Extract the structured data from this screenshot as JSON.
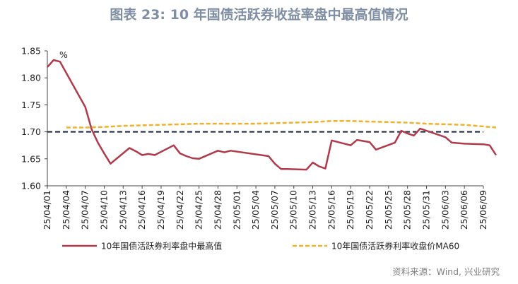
{
  "title": "图表 23: 10 年国债活跃券收益率盘中最高值情况",
  "source": "资料来源：Wind, 兴业研究",
  "chart_data": {
    "type": "line",
    "unit_label": "%",
    "ylim": [
      1.6,
      1.85
    ],
    "yticks": [
      "1.85",
      "1.80",
      "1.75",
      "1.70",
      "1.65",
      "1.60"
    ],
    "xtick_labels": [
      "25/04/01",
      "25/04/04",
      "25/04/07",
      "25/04/10",
      "25/04/13",
      "25/04/16",
      "25/04/19",
      "25/04/22",
      "25/04/25",
      "25/04/28",
      "25/05/01",
      "25/05/04",
      "25/05/07",
      "25/05/10",
      "25/05/13",
      "25/05/16",
      "25/05/19",
      "25/05/22",
      "25/05/25",
      "25/05/28",
      "25/05/31",
      "25/06/03",
      "25/06/06",
      "25/06/09"
    ],
    "reference_line": 1.7,
    "series": [
      {
        "name": "10年国债活跃券利率盘中最高值",
        "color": "#b03a4a",
        "style": "solid",
        "points": [
          [
            "25/04/01",
            1.82
          ],
          [
            "25/04/02",
            1.833
          ],
          [
            "25/04/03",
            1.83
          ],
          [
            "25/04/07",
            1.746
          ],
          [
            "25/04/08",
            1.705
          ],
          [
            "25/04/09",
            1.68
          ],
          [
            "25/04/10",
            1.66
          ],
          [
            "25/04/11",
            1.641
          ],
          [
            "25/04/14",
            1.67
          ],
          [
            "25/04/15",
            1.664
          ],
          [
            "25/04/16",
            1.657
          ],
          [
            "25/04/17",
            1.659
          ],
          [
            "25/04/18",
            1.657
          ],
          [
            "25/04/21",
            1.675
          ],
          [
            "25/04/22",
            1.66
          ],
          [
            "25/04/23",
            1.655
          ],
          [
            "25/04/24",
            1.651
          ],
          [
            "25/04/25",
            1.65
          ],
          [
            "25/04/28",
            1.665
          ],
          [
            "25/04/29",
            1.662
          ],
          [
            "25/04/30",
            1.665
          ],
          [
            "25/05/06",
            1.655
          ],
          [
            "25/05/07",
            1.641
          ],
          [
            "25/05/08",
            1.631
          ],
          [
            "25/05/09",
            1.631
          ],
          [
            "25/05/12",
            1.63
          ],
          [
            "25/05/13",
            1.643
          ],
          [
            "25/05/14",
            1.636
          ],
          [
            "25/05/15",
            1.632
          ],
          [
            "25/05/16",
            1.684
          ],
          [
            "25/05/19",
            1.675
          ],
          [
            "25/05/20",
            1.685
          ],
          [
            "25/05/21",
            1.683
          ],
          [
            "25/05/22",
            1.681
          ],
          [
            "25/05/23",
            1.667
          ],
          [
            "25/05/26",
            1.68
          ],
          [
            "25/05/27",
            1.702
          ],
          [
            "25/05/28",
            1.697
          ],
          [
            "25/05/29",
            1.693
          ],
          [
            "25/05/30",
            1.706
          ],
          [
            "25/06/03",
            1.69
          ],
          [
            "25/06/04",
            1.68
          ],
          [
            "25/06/05",
            1.679
          ],
          [
            "25/06/06",
            1.678
          ],
          [
            "25/06/09",
            1.677
          ],
          [
            "25/06/10",
            1.675
          ],
          [
            "25/06/11",
            1.657
          ]
        ]
      },
      {
        "name": "10年国债活跃券利率收盘价MA60",
        "color": "#f0b12b",
        "style": "dashed",
        "points": [
          [
            "25/04/04",
            1.708
          ],
          [
            "25/04/07",
            1.708
          ],
          [
            "25/04/10",
            1.709
          ],
          [
            "25/04/13",
            1.711
          ],
          [
            "25/04/16",
            1.712
          ],
          [
            "25/04/19",
            1.713
          ],
          [
            "25/04/22",
            1.714
          ],
          [
            "25/04/25",
            1.715
          ],
          [
            "25/04/28",
            1.715
          ],
          [
            "25/05/01",
            1.715
          ],
          [
            "25/05/04",
            1.715
          ],
          [
            "25/05/07",
            1.716
          ],
          [
            "25/05/10",
            1.717
          ],
          [
            "25/05/13",
            1.718
          ],
          [
            "25/05/16",
            1.72
          ],
          [
            "25/05/19",
            1.72
          ],
          [
            "25/05/22",
            1.719
          ],
          [
            "25/05/25",
            1.718
          ],
          [
            "25/05/28",
            1.717
          ],
          [
            "25/05/31",
            1.715
          ],
          [
            "25/06/03",
            1.714
          ],
          [
            "25/06/06",
            1.713
          ],
          [
            "25/06/09",
            1.71
          ],
          [
            "25/06/11",
            1.708
          ]
        ]
      }
    ],
    "legend": [
      {
        "label": "10年国债活跃券利率盘中最高值",
        "color": "#b03a4a",
        "style": "solid"
      },
      {
        "label": "10年国债活跃券利率收盘价MA60",
        "color": "#f0b12b",
        "style": "dashed"
      }
    ]
  }
}
